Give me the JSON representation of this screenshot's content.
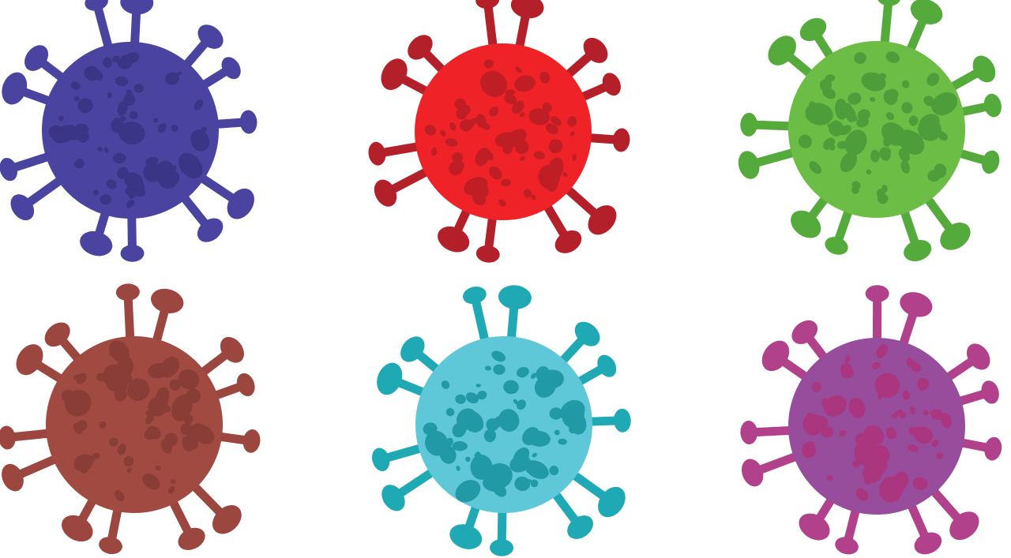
{
  "background": "#ffffff",
  "viruses": [
    {
      "name": "blue-virus",
      "body": "#4a44a0",
      "spike": "#4a44a0",
      "spot": "#3b3588"
    },
    {
      "name": "red-virus",
      "body": "#ee2227",
      "spike": "#b3202a",
      "spot": "#c01e25"
    },
    {
      "name": "green-virus",
      "body": "#6cbd45",
      "spike": "#55aa3c",
      "spot": "#4d9e3a"
    },
    {
      "name": "brown-virus",
      "body": "#a04a42",
      "spike": "#9c4640",
      "spot": "#8a3c36"
    },
    {
      "name": "cyan-virus",
      "body": "#5ec8d8",
      "spike": "#1ea9b5",
      "spot": "#2299a6"
    },
    {
      "name": "purple-virus",
      "body": "#974c9c",
      "spike": "#b0418a",
      "spot": "#a9367f"
    }
  ]
}
